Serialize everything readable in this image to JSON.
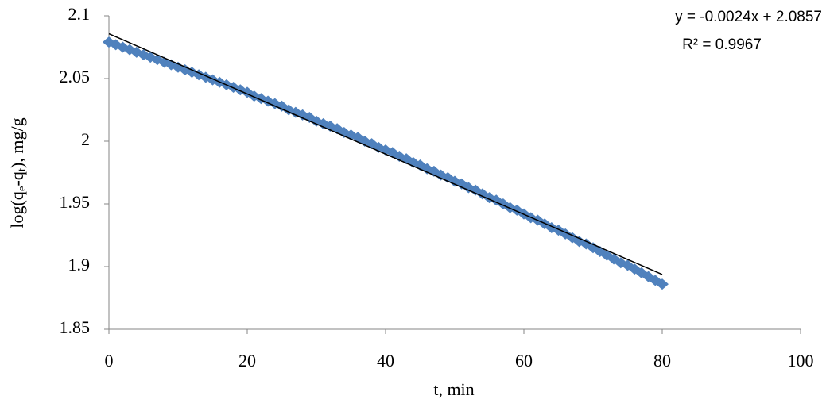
{
  "chart_data": {
    "type": "scatter",
    "xlabel": "t, min",
    "ylabel": [
      "log(q",
      "e",
      "-q",
      "t",
      "), mg/g"
    ],
    "annotations": [
      "y = -0.0024x + 2.0857",
      "R² = 0.9967"
    ],
    "x": [
      0,
      1,
      2,
      3,
      4,
      5,
      6,
      7,
      8,
      9,
      10,
      11,
      12,
      13,
      14,
      15,
      16,
      17,
      18,
      19,
      20,
      21,
      22,
      23,
      24,
      25,
      26,
      27,
      28,
      29,
      30,
      31,
      32,
      33,
      34,
      35,
      36,
      37,
      38,
      39,
      40,
      41,
      42,
      43,
      44,
      45,
      46,
      47,
      48,
      49,
      50,
      51,
      52,
      53,
      54,
      55,
      56,
      57,
      58,
      59,
      60,
      61,
      62,
      63,
      64,
      65,
      66,
      67,
      68,
      69,
      70,
      71,
      72,
      73,
      74,
      75,
      76,
      77,
      78,
      79,
      80
    ],
    "values": [
      2.079,
      2.077,
      2.075,
      2.073,
      2.071,
      2.069,
      2.067,
      2.065,
      2.063,
      2.061,
      2.059,
      2.057,
      2.055,
      2.053,
      2.051,
      2.049,
      2.047,
      2.045,
      2.043,
      2.041,
      2.039,
      2.036,
      2.034,
      2.032,
      2.03,
      2.028,
      2.025,
      2.023,
      2.021,
      2.019,
      2.016,
      2.014,
      2.012,
      2.01,
      2.007,
      2.005,
      2.003,
      2.0,
      1.998,
      1.995,
      1.993,
      1.991,
      1.988,
      1.986,
      1.983,
      1.981,
      1.978,
      1.976,
      1.973,
      1.971,
      1.968,
      1.966,
      1.963,
      1.961,
      1.958,
      1.955,
      1.953,
      1.95,
      1.947,
      1.945,
      1.942,
      1.939,
      1.937,
      1.934,
      1.931,
      1.929,
      1.926,
      1.923,
      1.92,
      1.918,
      1.915,
      1.912,
      1.909,
      1.906,
      1.903,
      1.901,
      1.898,
      1.895,
      1.892,
      1.889,
      1.886
    ],
    "color": "#4f81bd",
    "trendline": {
      "x": [
        0,
        80
      ],
      "values": [
        2.0857,
        1.8937
      ],
      "color": "#000000"
    },
    "xlim": [
      0,
      100
    ],
    "xticks": [
      0,
      20,
      40,
      60,
      80,
      100
    ],
    "ylim": [
      1.85,
      2.1
    ],
    "yticks": [
      1.85,
      1.9,
      1.95,
      2,
      2.05,
      2.1
    ],
    "grid": false
  }
}
